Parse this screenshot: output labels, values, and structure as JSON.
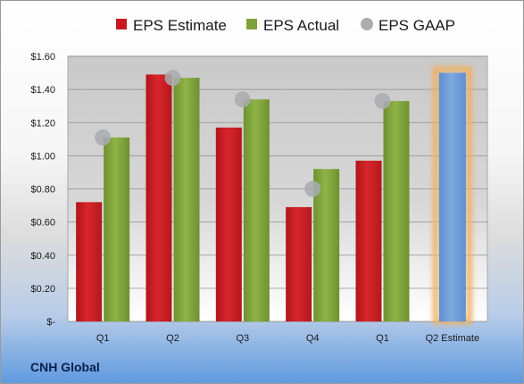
{
  "company_label": "CNH Global",
  "chart_data": {
    "type": "bar",
    "categories": [
      "Q1",
      "Q2",
      "Q3",
      "Q4",
      "Q1",
      "Q2 Estimate"
    ],
    "series": [
      {
        "name": "EPS Estimate",
        "color": "#c8191e",
        "values": [
          0.72,
          1.49,
          1.17,
          0.69,
          0.97,
          null
        ]
      },
      {
        "name": "EPS Actual",
        "color": "#7fa23a",
        "values": [
          1.11,
          1.47,
          1.34,
          0.92,
          1.33,
          null
        ]
      },
      {
        "name": "EPS GAAP",
        "color": "#a9acb0",
        "values": [
          1.11,
          1.47,
          1.34,
          0.8,
          1.33,
          null
        ],
        "marker": "circle"
      }
    ],
    "estimate_bar": {
      "category": "Q2 Estimate",
      "value": 1.5,
      "color": "#6f9ed8",
      "glow": "#f0b060"
    },
    "ylim": [
      0,
      1.6
    ],
    "yticks": [
      0,
      0.2,
      0.4,
      0.6,
      0.8,
      1.0,
      1.2,
      1.4,
      1.6
    ],
    "ytick_labels": [
      "$-",
      "$0.20",
      "$0.40",
      "$0.60",
      "$0.80",
      "$1.00",
      "$1.20",
      "$1.40",
      "$1.60"
    ],
    "grid": true,
    "legend": "top",
    "title": "",
    "xlabel": "",
    "ylabel": ""
  }
}
